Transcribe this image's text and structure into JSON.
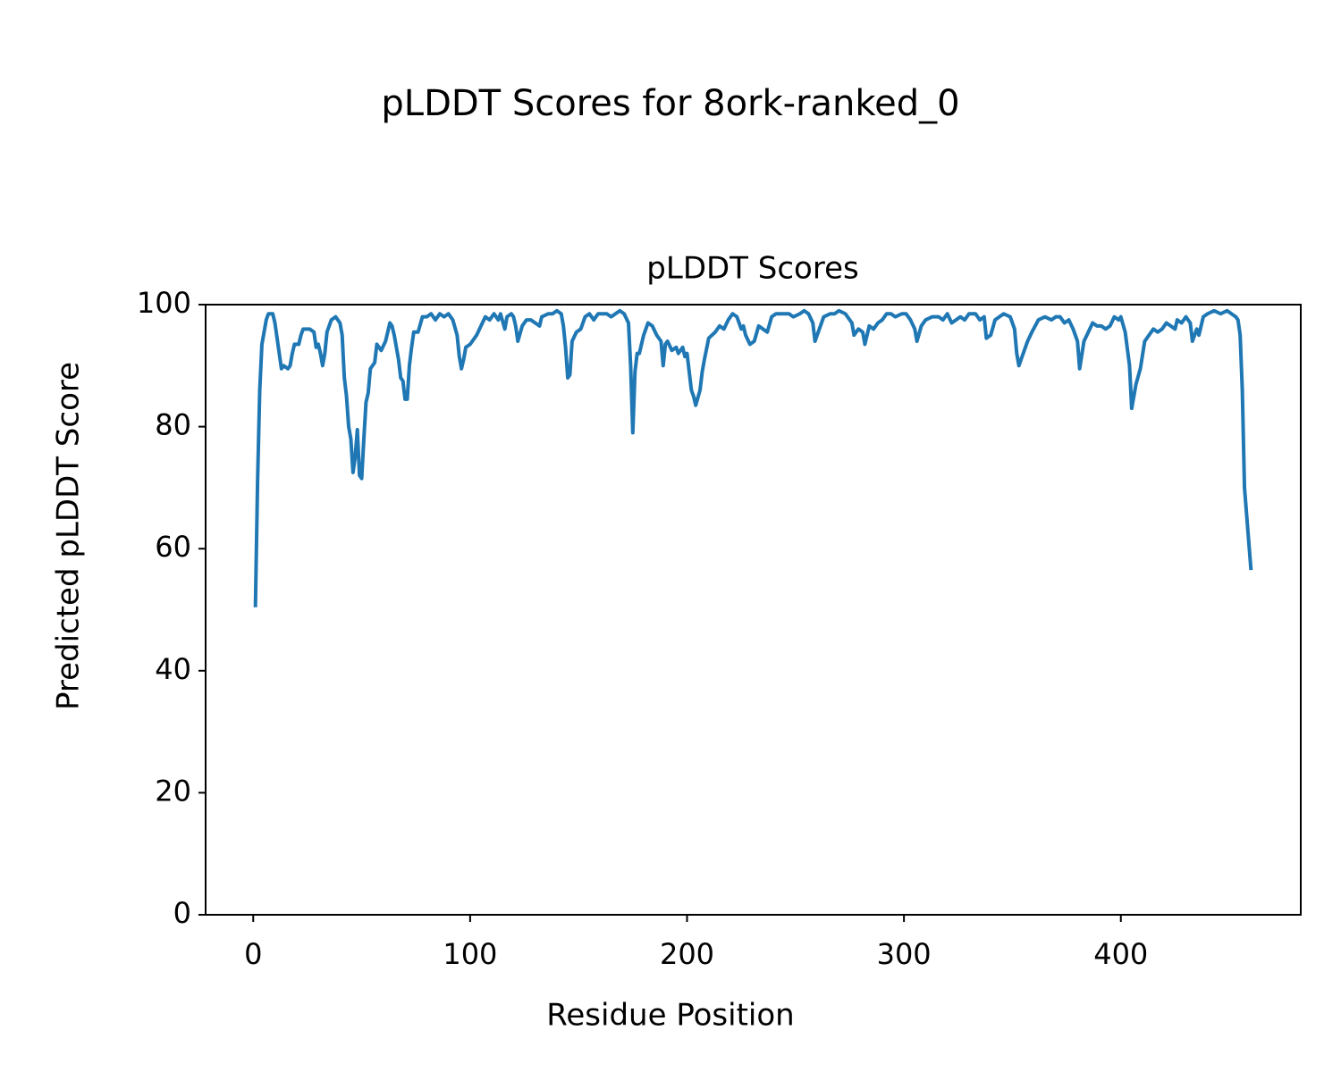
{
  "chart_data": {
    "type": "line",
    "title": "pLDDT Scores for 8ork-ranked_0",
    "subtitle": "pLDDT Scores",
    "xlabel": "Residue Position",
    "ylabel": "Predicted pLDDT Score",
    "color": "#1f77b4",
    "xlim": [
      -21.95,
      482.95
    ],
    "xticks": [
      0,
      100,
      200,
      300,
      400
    ],
    "ylim": [
      0,
      100
    ],
    "yticks": [
      0,
      20,
      40,
      60,
      80,
      100
    ],
    "grid": false,
    "x": [
      1,
      2,
      3,
      4,
      5,
      6,
      7,
      9,
      10,
      12,
      13,
      14,
      16,
      17,
      18,
      19,
      21,
      22,
      23,
      26,
      28,
      29,
      30,
      31,
      32,
      33,
      34,
      36,
      38,
      40,
      41,
      42,
      43,
      44,
      45,
      46,
      47,
      48,
      49,
      50,
      51,
      52,
      53,
      54,
      56,
      57,
      58,
      59,
      61,
      62,
      63,
      64,
      65,
      67,
      68,
      69,
      70,
      71,
      72,
      73,
      74,
      76,
      78,
      80,
      82,
      84,
      86,
      88,
      90,
      92,
      94,
      95,
      96,
      97,
      98,
      100,
      103,
      105,
      107,
      109,
      111,
      113,
      114,
      116,
      117,
      119,
      120,
      121,
      122,
      124,
      126,
      128,
      130,
      132,
      133,
      136,
      138,
      140,
      142,
      143,
      144,
      145,
      146,
      147,
      149,
      151,
      153,
      155,
      157,
      159,
      161,
      163,
      165,
      167,
      169,
      171,
      173,
      174,
      175,
      176,
      177,
      178,
      180,
      182,
      184,
      186,
      188,
      189,
      190,
      191,
      193,
      195,
      196,
      198,
      199,
      200,
      202,
      203,
      204,
      206,
      207,
      208,
      210,
      213,
      215,
      217,
      219,
      221,
      223,
      225,
      226,
      227,
      229,
      231,
      233,
      235,
      237,
      239,
      241,
      244,
      247,
      249,
      252,
      254,
      256,
      258,
      259,
      261,
      263,
      266,
      268,
      270,
      273,
      276,
      277,
      279,
      281,
      282,
      284,
      286,
      288,
      290,
      292,
      294,
      296,
      299,
      301,
      303,
      305,
      306,
      308,
      310,
      313,
      316,
      318,
      320,
      322,
      324,
      326,
      328,
      330,
      333,
      335,
      337,
      338,
      340,
      342,
      344,
      346,
      349,
      351,
      352,
      353,
      355,
      357,
      359,
      362,
      365,
      368,
      370,
      372,
      374,
      376,
      378,
      380,
      381,
      383,
      385,
      387,
      389,
      391,
      393,
      395,
      397,
      399,
      400,
      402,
      404,
      405,
      407,
      409,
      411,
      413,
      415,
      417,
      419,
      421,
      423,
      425,
      426,
      428,
      430,
      432,
      433,
      435,
      436,
      438,
      440,
      443,
      446,
      449,
      451,
      453,
      454,
      455,
      456,
      457,
      460
    ],
    "values": [
      50.4,
      71,
      86,
      93.5,
      95.5,
      97.5,
      98.5,
      98.5,
      97,
      92,
      89.5,
      90,
      89.5,
      90,
      92,
      93.5,
      93.5,
      95,
      96,
      96,
      95.5,
      93,
      93.5,
      92,
      90,
      92,
      95.5,
      97.5,
      98,
      97,
      95,
      88,
      85,
      80,
      78,
      72.5,
      75,
      79.5,
      72,
      71.5,
      78,
      84,
      85.5,
      89.5,
      90.5,
      93.5,
      93,
      92.5,
      94,
      95.5,
      97,
      96.5,
      95,
      91,
      88,
      87.5,
      84.5,
      84.5,
      90,
      93,
      95.5,
      95.5,
      98,
      98,
      98.5,
      97.5,
      98.5,
      98,
      98.5,
      97.5,
      95,
      91.5,
      89.5,
      91,
      93,
      93.5,
      95,
      96.5,
      98,
      97.5,
      98.5,
      97.5,
      98.5,
      96,
      98,
      98.5,
      98,
      96.5,
      94,
      96.5,
      97.5,
      97.5,
      97,
      96.5,
      98,
      98.5,
      98.5,
      99,
      98.5,
      96.5,
      93,
      88,
      88.5,
      94,
      95.5,
      96,
      98,
      98.5,
      97.5,
      98.5,
      98.5,
      98.5,
      98,
      98.5,
      99,
      98.5,
      97,
      90,
      79,
      89,
      92,
      92,
      95,
      97,
      96.5,
      95,
      94,
      90,
      93.5,
      94,
      92.5,
      93,
      92,
      93,
      91.5,
      92,
      86,
      85,
      83.5,
      86,
      89,
      91,
      94.5,
      95.5,
      96.5,
      96,
      97.5,
      98.5,
      98,
      96,
      96.5,
      95,
      93.5,
      94,
      96.5,
      96,
      95.5,
      98,
      98.5,
      98.5,
      98.5,
      98,
      98.5,
      99,
      98.5,
      97,
      94,
      96,
      98,
      98.5,
      98.5,
      99,
      98.5,
      97,
      95,
      96,
      95.5,
      93.5,
      96.5,
      96,
      97,
      97.5,
      98.5,
      98.5,
      98,
      98.5,
      98.5,
      97.5,
      96,
      94,
      96.5,
      97.5,
      98,
      98,
      97.5,
      98.5,
      97,
      97.5,
      98,
      97.5,
      98.5,
      98.5,
      97.5,
      98,
      94.5,
      95,
      97.5,
      98,
      98.5,
      98,
      96,
      92,
      90,
      92,
      94,
      95.5,
      97.5,
      98,
      97.5,
      98,
      98,
      97,
      97.5,
      96,
      94,
      89.5,
      94,
      95.5,
      97,
      96.5,
      96.5,
      96,
      96.5,
      98,
      97.5,
      98,
      95.5,
      90,
      83,
      87,
      89.5,
      94,
      95,
      96,
      95.5,
      96,
      97,
      96.5,
      96,
      97.5,
      97,
      98,
      97,
      94,
      96,
      95,
      98,
      98.5,
      99,
      98.5,
      99,
      98.5,
      98,
      97.5,
      95,
      86,
      70,
      56.5
    ]
  }
}
